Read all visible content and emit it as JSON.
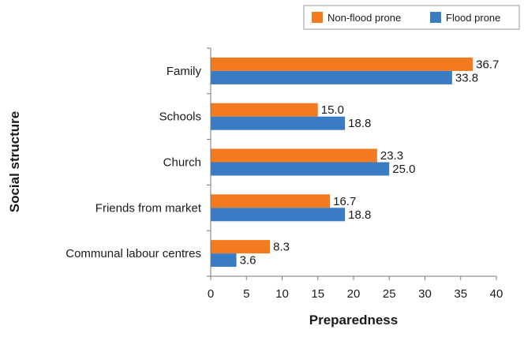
{
  "chart_data": {
    "type": "bar",
    "orientation": "horizontal",
    "categories": [
      "Family",
      "Schools",
      "Church",
      "Friends from market",
      "Communal labour centres"
    ],
    "series": [
      {
        "name": "Non-flood prone",
        "color": "#f47a20",
        "values": [
          36.7,
          15.0,
          23.3,
          16.7,
          8.3
        ]
      },
      {
        "name": "Flood prone",
        "color": "#3a7cc3",
        "values": [
          33.8,
          18.8,
          25.0,
          18.8,
          3.6
        ]
      }
    ],
    "xlabel": "Preparedness",
    "ylabel": "Social structure",
    "xlim": [
      0,
      40
    ],
    "xticks": [
      0,
      5,
      10,
      15,
      20,
      25,
      30,
      35,
      40
    ],
    "grid": false,
    "legend_position": "top-right"
  }
}
